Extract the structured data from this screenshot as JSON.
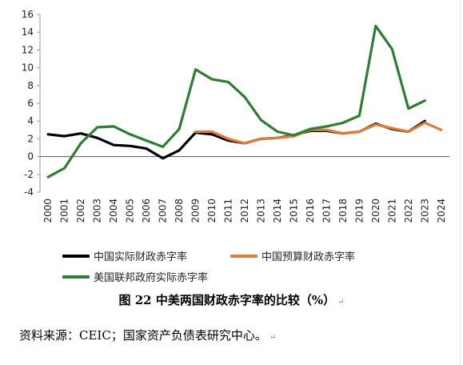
{
  "chart_data": {
    "type": "line",
    "title": "",
    "xlabel": "",
    "ylabel": "",
    "ylim": [
      -4,
      16
    ],
    "yticks": [
      -4,
      -2,
      0,
      2,
      4,
      6,
      8,
      10,
      12,
      14,
      16
    ],
    "grid": false,
    "legend_position": "bottom",
    "x": [
      "2000",
      "2001",
      "2002",
      "2003",
      "2004",
      "2005",
      "2006",
      "2007",
      "2008",
      "2009",
      "2010",
      "2011",
      "2012",
      "2013",
      "2014",
      "2015",
      "2016",
      "2017",
      "2018",
      "2019",
      "2020",
      "2021",
      "2022",
      "2023",
      "2024"
    ],
    "series": [
      {
        "name": "中国实际财政赤字率",
        "color": "#000000",
        "values": [
          2.5,
          2.3,
          2.6,
          2.1,
          1.3,
          1.2,
          0.9,
          -0.2,
          0.7,
          2.7,
          2.5,
          1.8,
          1.5,
          2.0,
          2.1,
          2.4,
          2.9,
          2.9,
          2.6,
          2.8,
          3.7,
          3.1,
          2.8,
          4.0,
          null
        ]
      },
      {
        "name": "中国预算财政赤字率",
        "color": "#E07B39",
        "values": [
          null,
          null,
          null,
          null,
          null,
          null,
          null,
          null,
          null,
          2.8,
          2.8,
          2.0,
          1.5,
          2.0,
          2.1,
          2.3,
          3.0,
          3.0,
          2.6,
          2.8,
          3.6,
          3.2,
          2.8,
          3.8,
          3.0
        ]
      },
      {
        "name": "美国联邦政府实际赤字率",
        "color": "#2E7D32",
        "values": [
          -2.3,
          -1.3,
          1.5,
          3.3,
          3.4,
          2.5,
          1.8,
          1.1,
          3.1,
          9.8,
          8.7,
          8.4,
          6.7,
          4.1,
          2.8,
          2.4,
          3.1,
          3.4,
          3.8,
          4.6,
          14.7,
          12.1,
          5.4,
          6.3,
          null
        ]
      }
    ]
  },
  "caption": "图 22 中美两国财政赤字率的比较（%）",
  "source": "资料来源：CEIC；国家资产负债表研究中心。",
  "return_mark": "↵"
}
